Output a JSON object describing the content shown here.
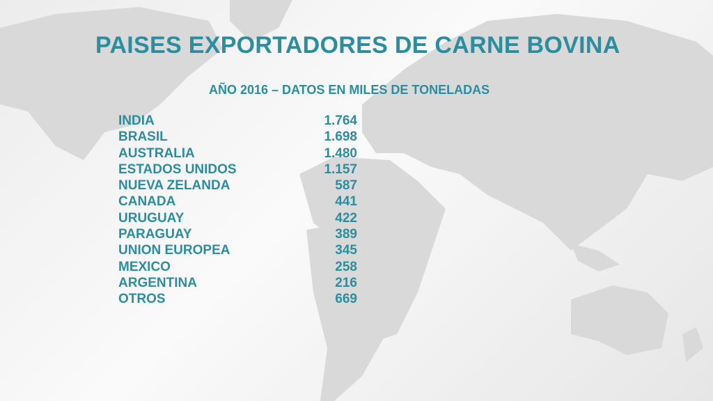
{
  "header": {
    "title": "PAISES EXPORTADORES DE CARNE BOVINA",
    "subtitle": "AÑO 2016 – DATOS EN MILES DE TONELADAS"
  },
  "table": {
    "rows": [
      [
        "INDIA",
        "1.764"
      ],
      [
        "BRASIL",
        "1.698"
      ],
      [
        "AUSTRALIA",
        "1.480"
      ],
      [
        "ESTADOS UNIDOS",
        "1.157"
      ],
      [
        "NUEVA ZELANDA",
        "587"
      ],
      [
        "CANADA",
        "441"
      ],
      [
        "URUGUAY",
        "422"
      ],
      [
        "PARAGUAY",
        "389"
      ],
      [
        "UNION EUROPEA",
        "345"
      ],
      [
        "MEXICO",
        "258"
      ],
      [
        "ARGENTINA",
        "216"
      ],
      [
        "OTROS",
        "669"
      ]
    ]
  }
}
